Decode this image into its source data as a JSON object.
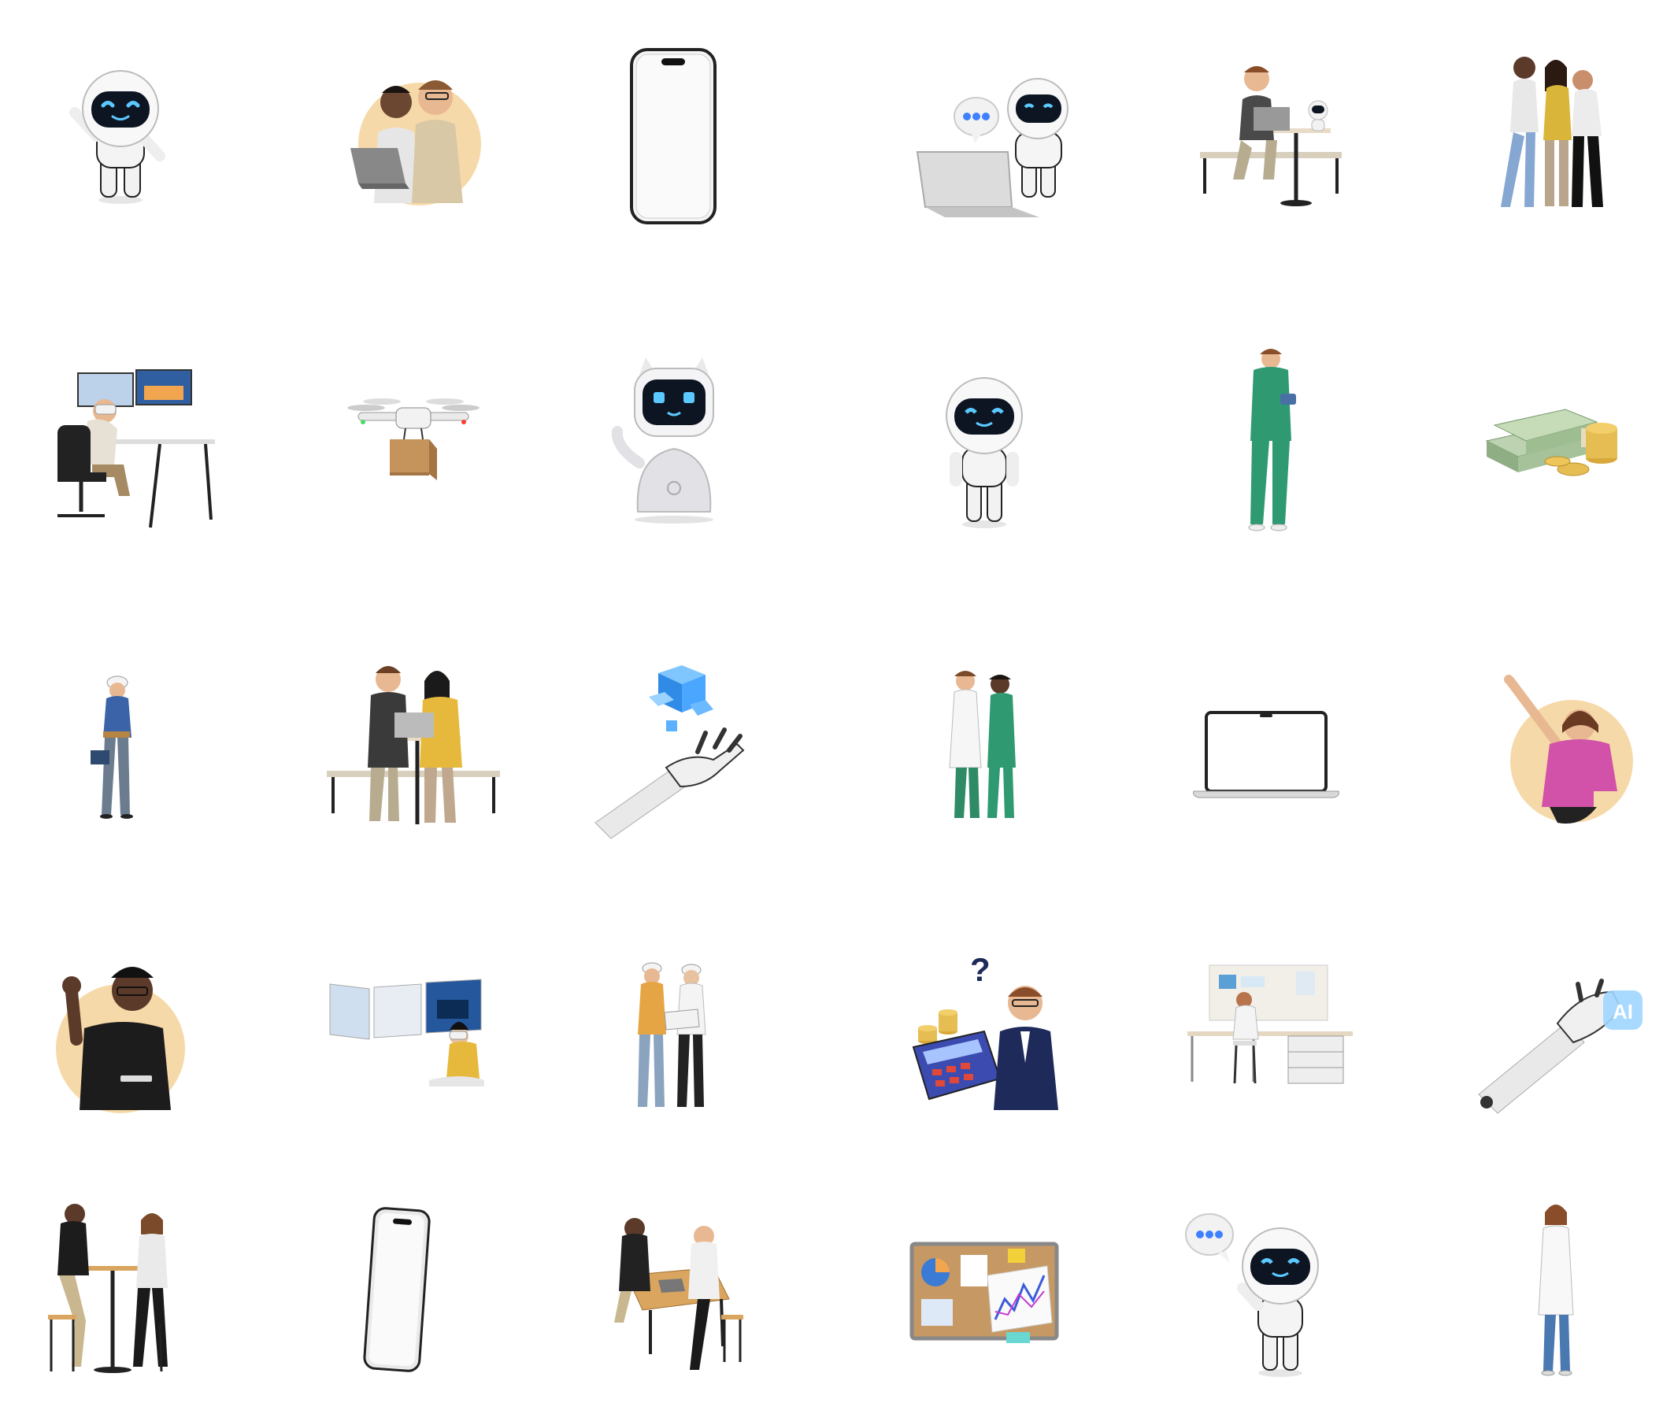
{
  "gallery": {
    "rows": [
      [
        "robot-waving",
        "two-men-laptop-circle",
        "smartphone-mockup",
        "robot-chat-laptop",
        "man-desk-robot",
        "three-friends"
      ],
      [
        "man-vr-monitors",
        "delivery-drone",
        "cute-robot-assistant",
        "robot-standing",
        "male-nurse-tablet",
        "money-stacks-coins"
      ],
      [
        "construction-worker-toolbox",
        "couple-laptop-bench",
        "robot-hand-cube",
        "two-doctors",
        "laptop-mockup",
        "woman-pointing-circle"
      ],
      [
        "man-waving-circle",
        "woman-vr-screens",
        "two-engineers-blueprint",
        "businessman-calculator-coins",
        "woman-workspace-desk",
        "robot-hand-ai"
      ],
      [
        "two-people-cafe-table",
        "smartphone-side-mockup",
        "two-people-table-meeting",
        "corkboard-charts",
        "robot-chat-bubble",
        "female-doctor"
      ]
    ],
    "ai_badge_text": "AI",
    "question_mark": "?"
  }
}
